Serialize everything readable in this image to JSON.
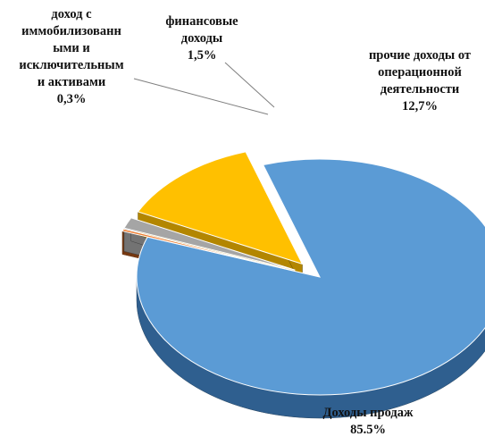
{
  "chart_data": {
    "type": "pie",
    "style": "3d-exploded",
    "slices": [
      {
        "label": "Доходы продаж",
        "value": 85.5,
        "value_label": "85.5%",
        "color": "#5b9bd5"
      },
      {
        "label": "доход с иммобилизованными и исключительным и активами",
        "label_lines": [
          "доход с",
          "иммобилизованн",
          "ыми и",
          "исключительным",
          "и активами"
        ],
        "value": 0.3,
        "value_label": "0,3%",
        "color": "#ed7d31"
      },
      {
        "label": "финансовые доходы",
        "label_lines": [
          "финансовые",
          "доходы"
        ],
        "value": 1.5,
        "value_label": "1,5%",
        "color": "#a5a5a5"
      },
      {
        "label": "прочие доходы от операционной деятельности",
        "label_lines": [
          "прочие доходы от",
          "операционной",
          "деятельности"
        ],
        "value": 12.7,
        "value_label": "12,7%",
        "color": "#ffc000"
      }
    ],
    "extra_colors": {
      "brown_face": "#7b3a12"
    }
  }
}
